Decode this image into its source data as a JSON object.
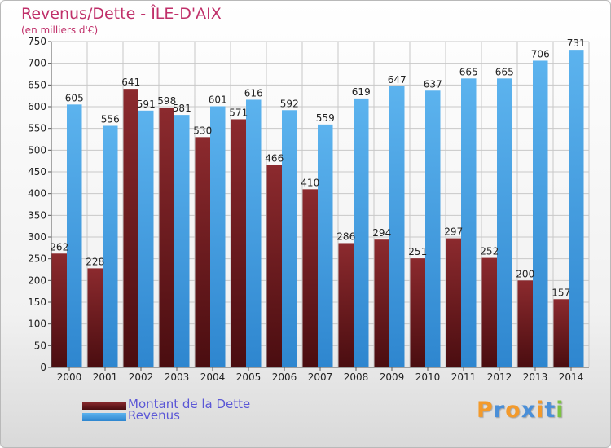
{
  "title": "Revenus/Dette - ÎLE-D'AIX",
  "subtitle": "(en milliers d'€)",
  "colors": {
    "title": "#c0306a",
    "dette": "#7a1f24",
    "revenus": "#4aa3e3",
    "legend_text": "#5b57d6"
  },
  "legend": [
    {
      "label": "Montant de la Dette",
      "color": "#7a1f24"
    },
    {
      "label": "Revenus",
      "color": "#4aa3e3"
    }
  ],
  "logo": {
    "letters": [
      "P",
      "r",
      "o",
      "x",
      "i",
      "t",
      "i"
    ],
    "colors": [
      "#f39a2b",
      "#4a8fd8",
      "#f39a2b",
      "#4a8fd8",
      "#f39a2b",
      "#4a8fd8",
      "#7cc242"
    ]
  },
  "chart_data": {
    "type": "bar",
    "categories": [
      "2000",
      "2001",
      "2002",
      "2003",
      "2004",
      "2005",
      "2006",
      "2007",
      "2008",
      "2009",
      "2010",
      "2011",
      "2012",
      "2013",
      "2014"
    ],
    "series": [
      {
        "name": "Montant de la Dette",
        "values": [
          262,
          228,
          641,
          598,
          530,
          571,
          466,
          410,
          286,
          294,
          251,
          297,
          252,
          200,
          157
        ]
      },
      {
        "name": "Revenus",
        "values": [
          605,
          556,
          591,
          581,
          601,
          616,
          592,
          559,
          619,
          647,
          637,
          665,
          665,
          706,
          731
        ]
      }
    ],
    "ylim": [
      0,
      750
    ],
    "yticks": [
      0,
      50,
      100,
      150,
      200,
      250,
      300,
      350,
      400,
      450,
      500,
      550,
      600,
      650,
      700,
      750
    ],
    "grid": true,
    "legend_position": "bottom-left"
  }
}
